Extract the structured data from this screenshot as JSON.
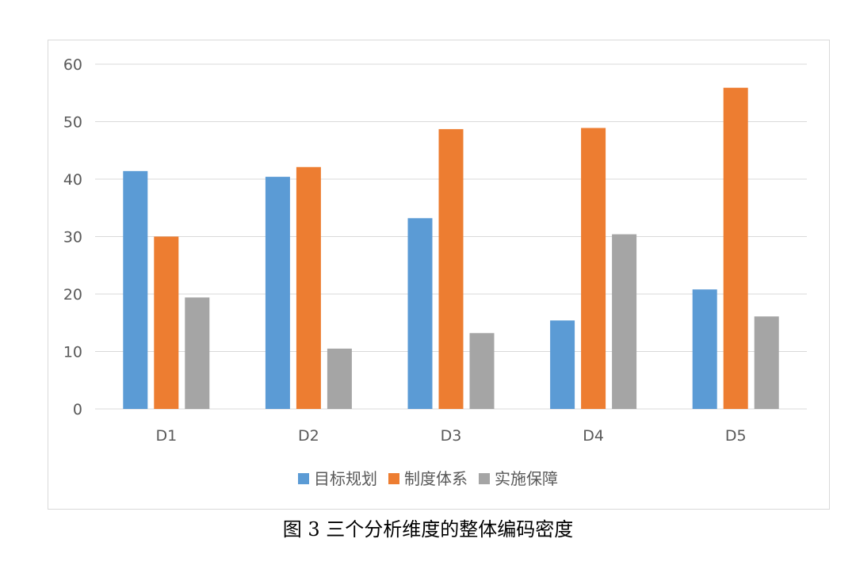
{
  "caption": "图 3  三个分析维度的整体编码密度",
  "colors": {
    "series": [
      "#5b9bd5",
      "#ed7d31",
      "#a5a5a5"
    ],
    "grid": "#d9d9d9",
    "text": "#595959"
  },
  "chart_data": {
    "type": "bar",
    "title": "",
    "xlabel": "",
    "ylabel": "",
    "categories": [
      "D1",
      "D2",
      "D3",
      "D4",
      "D5"
    ],
    "series": [
      {
        "name": "目标规划",
        "values": [
          41.4,
          40.4,
          33.2,
          15.4,
          20.8
        ]
      },
      {
        "name": "制度体系",
        "values": [
          30.0,
          42.1,
          48.7,
          48.9,
          55.9
        ]
      },
      {
        "name": "实施保障",
        "values": [
          19.4,
          10.5,
          13.2,
          30.4,
          16.1
        ]
      }
    ],
    "ylim": [
      0,
      60
    ],
    "yticks": [
      0,
      10,
      20,
      30,
      40,
      50,
      60
    ],
    "grid": true,
    "legend": "bottom"
  }
}
